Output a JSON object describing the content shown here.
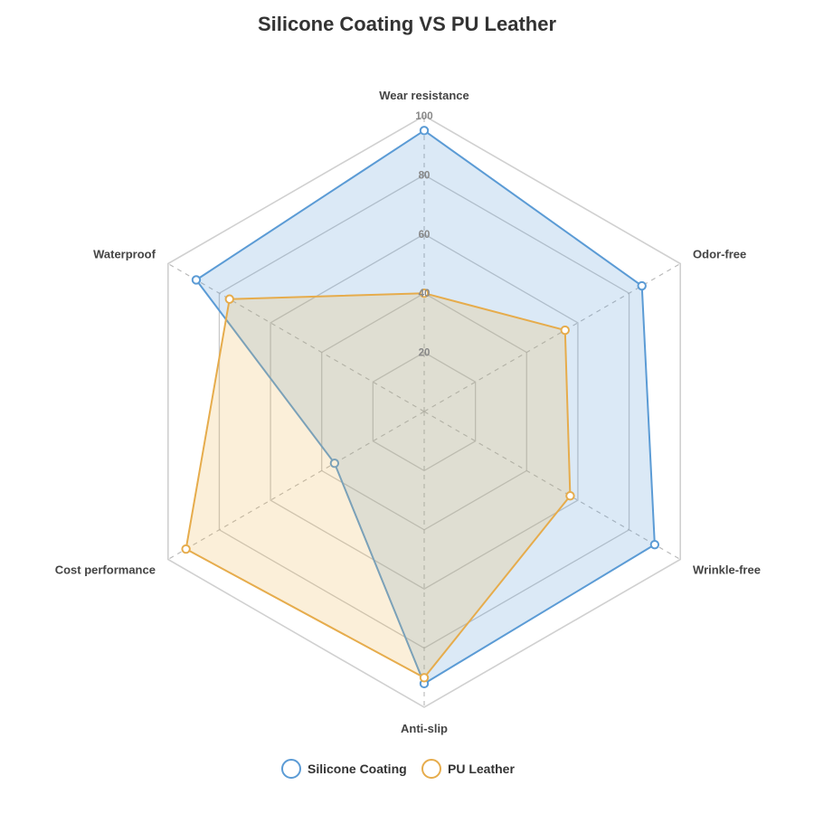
{
  "chart_data": {
    "type": "radar",
    "title": "Silicone Coating VS PU Leather",
    "axes": [
      "Wear resistance",
      "Odor-free",
      "Wrinkle-free",
      "Anti-slip",
      "Cost performance",
      "Waterproof"
    ],
    "range": [
      0,
      100
    ],
    "ticks": [
      "20",
      "40",
      "60",
      "80",
      "100"
    ],
    "grid_levels": [
      20,
      40,
      60,
      80,
      100
    ],
    "series": [
      {
        "name": "Silicone Coating",
        "color": "#5b9bd5",
        "fill": "rgba(91,155,213,0.22)",
        "values": [
          95,
          85,
          90,
          92,
          35,
          89
        ]
      },
      {
        "name": "PU Leather",
        "color": "#e6ac4c",
        "fill": "rgba(238,180,80,0.22)",
        "values": [
          40,
          55,
          57,
          90,
          93,
          76
        ]
      }
    ],
    "legend_position": "bottom-center",
    "grid": true
  }
}
